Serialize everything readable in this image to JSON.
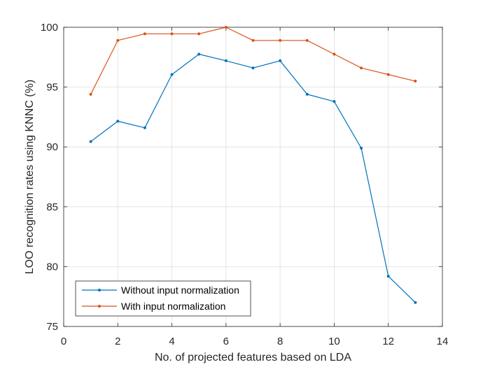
{
  "chart_data": {
    "type": "line",
    "xlabel": "No. of projected features based on LDA",
    "ylabel": "LOO recognition rates using KNNC (%)",
    "xlim": [
      0,
      14
    ],
    "ylim": [
      75,
      100
    ],
    "xticks": [
      "0",
      "2",
      "4",
      "6",
      "8",
      "10",
      "12",
      "14"
    ],
    "yticks": [
      "75",
      "80",
      "85",
      "90",
      "95",
      "100"
    ],
    "grid": true,
    "legend_position": "bottom-left",
    "series": [
      {
        "name": "Without input normalization",
        "color": "#0072BD",
        "x": [
          1,
          2,
          3,
          4,
          5,
          6,
          7,
          8,
          9,
          10,
          11,
          12,
          13
        ],
        "y": [
          90.45,
          92.15,
          91.6,
          96.05,
          97.75,
          97.2,
          96.6,
          97.2,
          94.4,
          93.8,
          89.9,
          79.2,
          77.0
        ]
      },
      {
        "name": "With input normalization",
        "color": "#D95319",
        "x": [
          1,
          2,
          3,
          4,
          5,
          6,
          7,
          8,
          9,
          10,
          11,
          12,
          13
        ],
        "y": [
          94.4,
          98.9,
          99.45,
          99.45,
          99.45,
          100.0,
          98.9,
          98.9,
          98.9,
          97.75,
          96.6,
          96.05,
          95.5
        ]
      }
    ]
  }
}
